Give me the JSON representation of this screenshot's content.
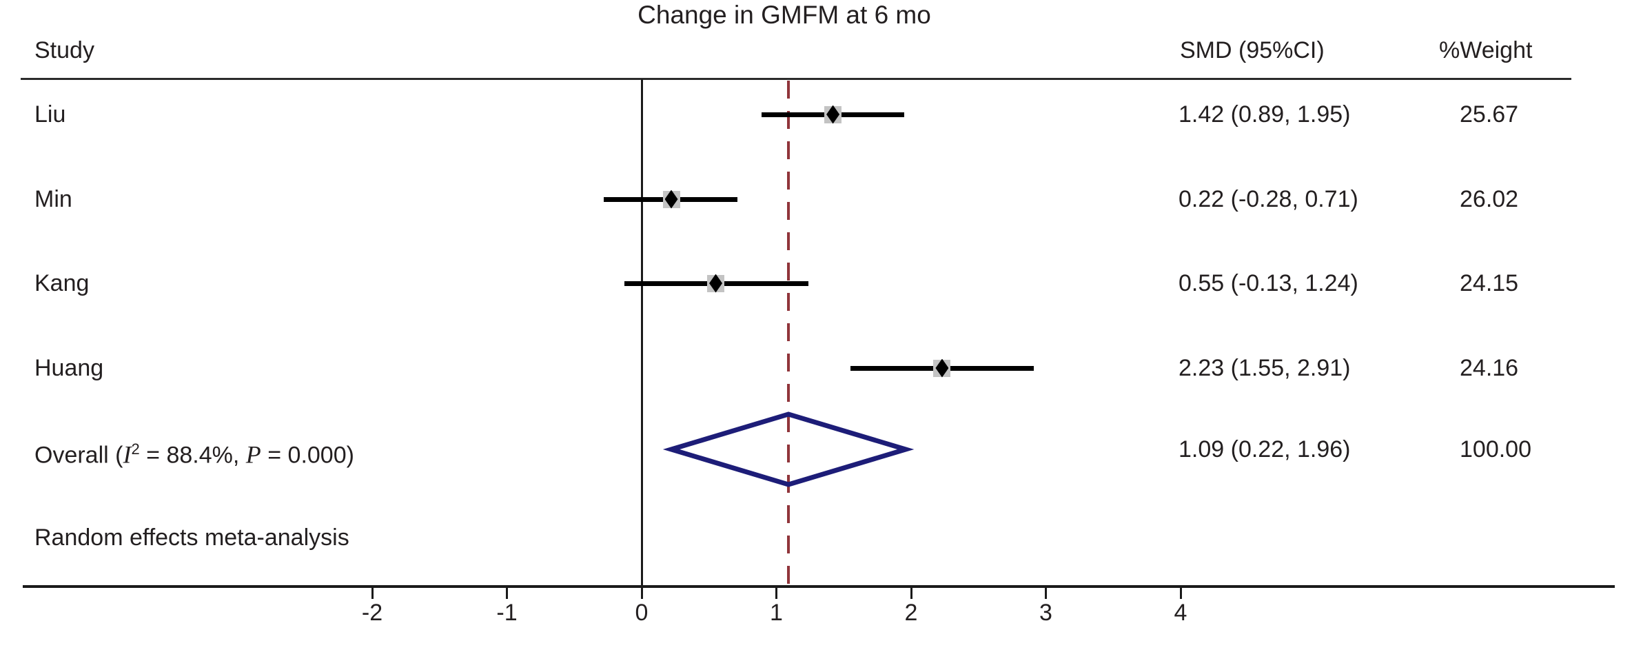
{
  "title": "Change in GMFM at 6 mo",
  "headers": {
    "study": "Study",
    "smd": "SMD (95%CI)",
    "weight": "%Weight"
  },
  "overall_label": {
    "pre": "Overall  (",
    "i": "I",
    "sup": "2",
    "eq1": " = ",
    "i2": "88.4%",
    "sep": ", ",
    "p": "P",
    "eq2": " = ",
    "pval": "0.000",
    "post": ")"
  },
  "note": "Random effects meta-analysis",
  "colors": {
    "text": "#231f20",
    "ci_line": "#000000",
    "point_marker": "#000000",
    "weight_box": "#c3c3c3",
    "overall_diamond": "#1d1d78",
    "overall_dashed_line": "#90353b",
    "axis": "#1a1a1a"
  },
  "chart_data": {
    "type": "forest",
    "title": "Change in GMFM at 6 mo",
    "xlabel": "",
    "x_ticks": [
      -2,
      -1,
      0,
      1,
      2,
      3,
      4
    ],
    "xlim": [
      -2.6,
      4.6
    ],
    "zero_line": 0,
    "overall_estimate_line": 1.09,
    "grid": false,
    "columns": [
      "Study",
      "SMD (95%CI)",
      "%Weight"
    ],
    "studies": [
      {
        "name": "Liu",
        "smd": 1.42,
        "lo": 0.89,
        "hi": 1.95,
        "smd_text": "1.42 (0.89, 1.95)",
        "weight": "25.67"
      },
      {
        "name": "Min",
        "smd": 0.22,
        "lo": -0.28,
        "hi": 0.71,
        "smd_text": "0.22 (-0.28, 0.71)",
        "weight": "26.02"
      },
      {
        "name": "Kang",
        "smd": 0.55,
        "lo": -0.13,
        "hi": 1.24,
        "smd_text": "0.55 (-0.13, 1.24)",
        "weight": "24.15"
      },
      {
        "name": "Huang",
        "smd": 2.23,
        "lo": 1.55,
        "hi": 2.91,
        "smd_text": "2.23 (1.55, 2.91)",
        "weight": "24.16"
      }
    ],
    "overall": {
      "label": "Overall  (I2 = 88.4%, P = 0.000)",
      "i2": "88.4%",
      "p": "0.000",
      "smd": 1.09,
      "lo": 0.22,
      "hi": 1.96,
      "smd_text": "1.09 (0.22, 1.96)",
      "weight": "100.00"
    },
    "note": "Random effects meta-analysis",
    "model": "random-effects"
  }
}
